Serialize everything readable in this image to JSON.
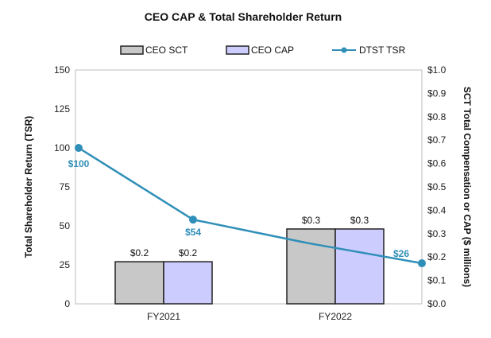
{
  "chart_data": {
    "type": "bar",
    "title": "CEO CAP & Total Shareholder Return",
    "categories": [
      "FY2021",
      "FY2022"
    ],
    "ylabel": "Total Shareholder Return (TSR)",
    "ylim": [
      0,
      150
    ],
    "yticks": [
      "0",
      "25",
      "50",
      "75",
      "100",
      "125",
      "150"
    ],
    "y2label": "SCT Total Compensation or CAP ($ millions)",
    "y2lim": [
      0,
      1.0
    ],
    "y2ticks": [
      "$0.0",
      "$0.1",
      "$0.2",
      "$0.3",
      "$0.4",
      "$0.5",
      "$0.6",
      "$0.7",
      "$0.8",
      "$0.9",
      "$1.0"
    ],
    "series": [
      {
        "name": "CEO SCT",
        "kind": "bar",
        "axis": "right",
        "color": "#c8c8c8",
        "values": [
          0.18,
          0.32
        ],
        "labels": [
          "$0.2",
          "$0.3"
        ]
      },
      {
        "name": "CEO CAP",
        "kind": "bar",
        "axis": "right",
        "color": "#ccccff",
        "values": [
          0.18,
          0.32
        ],
        "labels": [
          "$0.2",
          "$0.3"
        ]
      }
    ],
    "tsr": {
      "name": "DTST TSR",
      "kind": "line",
      "axis": "left",
      "color": "#2f8fb8",
      "positions": [
        0,
        1,
        2,
        3
      ],
      "values": [
        100,
        54,
        39,
        26
      ],
      "labels": [
        "$100",
        "$54",
        "",
        "$26"
      ]
    }
  }
}
